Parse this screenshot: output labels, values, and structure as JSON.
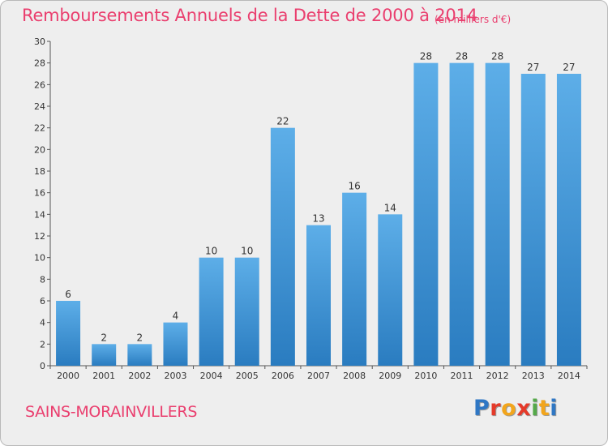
{
  "header": {
    "title": "Remboursements Annuels de la Dette de 2000 à 2014",
    "unit": "(en milliers d'€)"
  },
  "footer": {
    "commune": "SAINS-MORAINVILLERS",
    "brand": "Proxiti",
    "brand_letters": [
      {
        "char": "P",
        "color": "#2f77c4"
      },
      {
        "char": "r",
        "color": "#e53a2a"
      },
      {
        "char": "o",
        "color": "#f2a51c"
      },
      {
        "char": "x",
        "color": "#e53a2a"
      },
      {
        "char": "i",
        "color": "#55a94a"
      },
      {
        "char": "t",
        "color": "#f2a51c"
      },
      {
        "char": "i",
        "color": "#2f77c4"
      }
    ]
  },
  "chart_data": {
    "type": "bar",
    "title": "Remboursements Annuels de la Dette de 2000 à 2014",
    "subtitle": "(en milliers d'€)",
    "categories": [
      "2000",
      "2001",
      "2002",
      "2003",
      "2004",
      "2005",
      "2006",
      "2007",
      "2008",
      "2009",
      "2010",
      "2011",
      "2012",
      "2013",
      "2014"
    ],
    "values": [
      6,
      2,
      2,
      4,
      10,
      10,
      22,
      13,
      16,
      14,
      28,
      28,
      28,
      27,
      27
    ],
    "data_labels": [
      "6",
      "2",
      "2",
      "4",
      "10",
      "10",
      "22",
      "13",
      "16",
      "14",
      "28",
      "28",
      "28",
      "27",
      "27"
    ],
    "ylim": [
      0,
      30
    ],
    "y_ticks": [
      0,
      2,
      4,
      6,
      8,
      10,
      12,
      14,
      16,
      18,
      20,
      22,
      24,
      26,
      28,
      30
    ],
    "grid": false,
    "legend": "none",
    "bar_color_light": "#5daee8",
    "bar_color_dark": "#2a7cc0",
    "text_color": "#ea3e6e"
  }
}
